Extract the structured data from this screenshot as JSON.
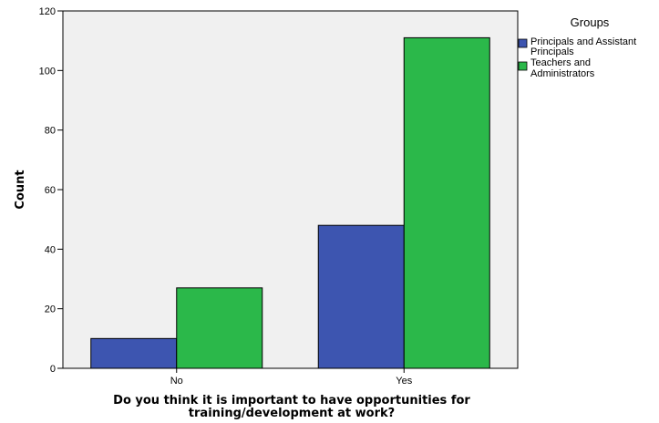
{
  "chart_data": {
    "type": "bar",
    "categories": [
      "No",
      "Yes"
    ],
    "series": [
      {
        "name": "Principals and Assistant Principals",
        "legend_lines": [
          "Principals and Assistant",
          "Principals"
        ],
        "values": [
          10,
          48
        ],
        "color": "#3d55b0"
      },
      {
        "name": "Teachers and Administrators",
        "legend_lines": [
          "Teachers and",
          "Administrators"
        ],
        "values": [
          27,
          111
        ],
        "color": "#2bb84a"
      }
    ],
    "xlabel_lines": [
      "Do you think it is important to have opportunities for",
      "training/development at work?"
    ],
    "ylabel": "Count",
    "ylim": [
      0,
      120
    ],
    "yticks": [
      0,
      20,
      40,
      60,
      80,
      100,
      120
    ],
    "legend": {
      "title": "Groups",
      "placement": "right"
    },
    "plot_background": "#f0f0f0",
    "grid": false
  }
}
